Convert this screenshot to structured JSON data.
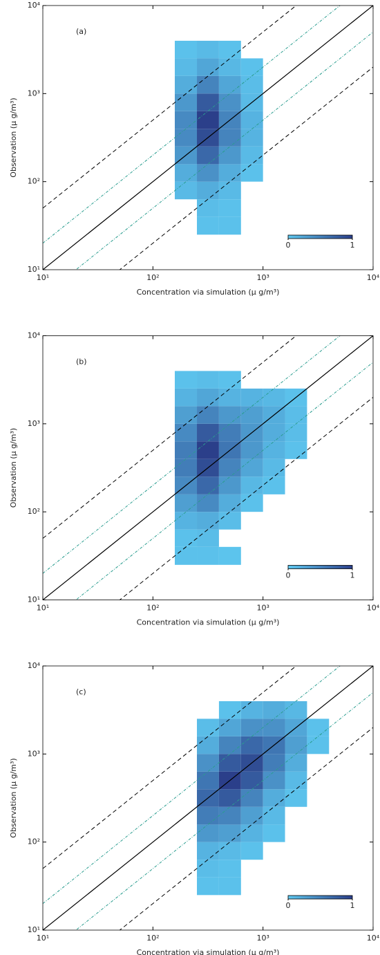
{
  "chart_data": [
    {
      "type": "heatmap",
      "panel_label": "(a)",
      "xlabel": "Concentration via simulation (μ g/m³)",
      "ylabel": "Observation (μ g/m³)",
      "log_x": true,
      "log_y": true,
      "xlim": [
        10,
        10000
      ],
      "ylim": [
        10,
        10000
      ],
      "xticks": [
        {
          "value": 10,
          "label": "10¹"
        },
        {
          "value": 100,
          "label": "10²"
        },
        {
          "value": 1000,
          "label": "10³"
        },
        {
          "value": 10000,
          "label": "10⁴"
        }
      ],
      "yticks": [
        {
          "value": 10,
          "label": "10¹"
        },
        {
          "value": 100,
          "label": "10²"
        },
        {
          "value": 1000,
          "label": "10³"
        },
        {
          "value": 10000,
          "label": "10⁴"
        }
      ],
      "reference_lines": [
        {
          "factor": 1,
          "style": "solid",
          "color": "#000000"
        },
        {
          "factor": 2,
          "style": "dashdot",
          "color": "#2a9d8f"
        },
        {
          "factor": 5,
          "style": "dashed",
          "color": "#000000"
        }
      ],
      "x_bins": [
        158,
        251,
        398,
        631,
        1000,
        1585,
        2512,
        3981
      ],
      "y_bins": [
        25,
        40,
        63,
        100,
        158,
        251,
        398,
        631,
        1000,
        1585,
        2512,
        3981
      ],
      "density": [
        [
          null,
          0.05,
          0.05,
          null,
          null,
          null,
          null
        ],
        [
          null,
          0.08,
          0.05,
          null,
          null,
          null,
          null
        ],
        [
          0.1,
          0.2,
          0.1,
          null,
          null,
          null,
          null
        ],
        [
          0.2,
          0.4,
          0.2,
          0.05,
          null,
          null,
          null
        ],
        [
          0.35,
          0.7,
          0.35,
          0.1,
          null,
          null,
          null
        ],
        [
          0.45,
          0.9,
          0.5,
          0.15,
          null,
          null,
          null
        ],
        [
          0.45,
          1.0,
          0.5,
          0.15,
          null,
          null,
          null
        ],
        [
          0.35,
          0.8,
          0.4,
          0.1,
          null,
          null,
          null
        ],
        [
          0.2,
          0.5,
          0.25,
          0.08,
          null,
          null,
          null
        ],
        [
          0.1,
          0.25,
          0.12,
          0.05,
          null,
          null,
          null
        ],
        [
          0.05,
          0.1,
          0.05,
          null,
          null,
          null,
          null
        ]
      ],
      "clim": [
        0,
        1
      ],
      "colorbar": {
        "ticks": [
          0,
          1
        ],
        "colors": [
          "#5ec8f0",
          "#2b3f8a"
        ]
      }
    },
    {
      "type": "heatmap",
      "panel_label": "(b)",
      "xlabel": "Concentration via simulation (μ g/m³)",
      "ylabel": "Observation (μ g/m³)",
      "log_x": true,
      "log_y": true,
      "xlim": [
        10,
        10000
      ],
      "ylim": [
        10,
        10000
      ],
      "xticks": [
        {
          "value": 10,
          "label": "10¹"
        },
        {
          "value": 100,
          "label": "10²"
        },
        {
          "value": 1000,
          "label": "10³"
        },
        {
          "value": 10000,
          "label": "10⁴"
        }
      ],
      "yticks": [
        {
          "value": 10,
          "label": "10¹"
        },
        {
          "value": 100,
          "label": "10²"
        },
        {
          "value": 1000,
          "label": "10³"
        },
        {
          "value": 10000,
          "label": "10⁴"
        }
      ],
      "reference_lines": [
        {
          "factor": 1,
          "style": "solid",
          "color": "#000000"
        },
        {
          "factor": 2,
          "style": "dashdot",
          "color": "#2a9d8f"
        },
        {
          "factor": 5,
          "style": "dashed",
          "color": "#000000"
        }
      ],
      "x_bins": [
        158,
        251,
        398,
        631,
        1000,
        1585,
        2512,
        3981
      ],
      "y_bins": [
        25,
        40,
        63,
        100,
        158,
        251,
        398,
        631,
        1000,
        1585,
        2512,
        3981
      ],
      "density": [
        [
          0.05,
          0.05,
          0.03,
          null,
          null,
          null,
          null
        ],
        [
          0.05,
          0.08,
          null,
          null,
          null,
          null,
          null
        ],
        [
          0.15,
          0.2,
          0.08,
          null,
          null,
          null,
          null
        ],
        [
          0.3,
          0.45,
          0.2,
          0.05,
          null,
          null,
          null
        ],
        [
          0.45,
          0.7,
          0.35,
          0.12,
          0.05,
          null,
          null
        ],
        [
          0.55,
          0.9,
          0.5,
          0.25,
          0.1,
          null,
          null
        ],
        [
          0.55,
          1.0,
          0.6,
          0.35,
          0.15,
          0.05,
          null
        ],
        [
          0.45,
          0.8,
          0.55,
          0.35,
          0.2,
          0.08,
          null
        ],
        [
          0.3,
          0.5,
          0.35,
          0.3,
          0.2,
          0.08,
          null
        ],
        [
          0.15,
          0.25,
          0.15,
          0.15,
          0.12,
          0.05,
          null
        ],
        [
          0.05,
          0.08,
          0.05,
          null,
          null,
          null,
          null
        ]
      ],
      "clim": [
        0,
        1
      ],
      "colorbar": {
        "ticks": [
          0,
          1
        ],
        "colors": [
          "#5ec8f0",
          "#2b3f8a"
        ]
      }
    },
    {
      "type": "heatmap",
      "panel_label": "(c)",
      "xlabel": "Concentration via simulation (μ g/m³)",
      "ylabel": "Observation (μ g/m³)",
      "log_x": true,
      "log_y": true,
      "xlim": [
        10,
        10000
      ],
      "ylim": [
        10,
        10000
      ],
      "xticks": [
        {
          "value": 10,
          "label": "10¹"
        },
        {
          "value": 100,
          "label": "10²"
        },
        {
          "value": 1000,
          "label": "10³"
        },
        {
          "value": 10000,
          "label": "10⁴"
        }
      ],
      "yticks": [
        {
          "value": 10,
          "label": "10¹"
        },
        {
          "value": 100,
          "label": "10²"
        },
        {
          "value": 1000,
          "label": "10³"
        },
        {
          "value": 10000,
          "label": "10⁴"
        }
      ],
      "reference_lines": [
        {
          "factor": 1,
          "style": "solid",
          "color": "#000000"
        },
        {
          "factor": 2,
          "style": "dashdot",
          "color": "#2a9d8f"
        },
        {
          "factor": 5,
          "style": "dashed",
          "color": "#000000"
        }
      ],
      "x_bins": [
        158,
        251,
        398,
        631,
        1000,
        1585,
        2512,
        3981
      ],
      "y_bins": [
        25,
        40,
        63,
        100,
        158,
        251,
        398,
        631,
        1000,
        1585,
        2512,
        3981
      ],
      "density": [
        [
          null,
          0.05,
          0.05,
          null,
          null,
          null,
          null
        ],
        [
          null,
          0.08,
          0.05,
          null,
          null,
          null,
          null
        ],
        [
          null,
          0.15,
          0.1,
          0.05,
          null,
          null,
          null
        ],
        [
          null,
          0.35,
          0.3,
          0.15,
          0.05,
          null,
          null
        ],
        [
          null,
          0.55,
          0.5,
          0.3,
          0.1,
          null,
          null
        ],
        [
          null,
          0.7,
          0.8,
          0.5,
          0.2,
          0.05,
          null
        ],
        [
          null,
          0.6,
          1.0,
          0.8,
          0.4,
          0.1,
          null
        ],
        [
          null,
          0.4,
          0.8,
          0.9,
          0.55,
          0.2,
          null
        ],
        [
          null,
          0.2,
          0.5,
          0.7,
          0.6,
          0.3,
          0.05
        ],
        [
          null,
          0.08,
          0.25,
          0.4,
          0.4,
          0.25,
          0.05
        ],
        [
          null,
          null,
          0.05,
          0.15,
          0.2,
          0.12,
          null
        ]
      ],
      "clim": [
        0,
        1
      ],
      "colorbar": {
        "ticks": [
          0,
          1
        ],
        "colors": [
          "#5ec8f0",
          "#2b3f8a"
        ]
      }
    }
  ]
}
